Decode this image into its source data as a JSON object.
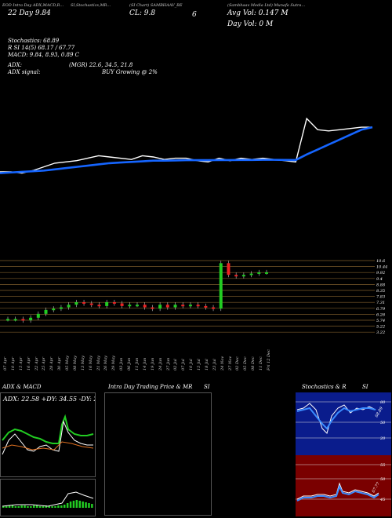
{
  "header": {
    "meta_left": "EOD Intra Day ADX,MACD,R...",
    "meta_mid1": "SI,Stochastics,MR...",
    "meta_mid2": "(SI Chart) SAMBHAAV_BE",
    "meta_right": "(Sambhaav Media Ltd) Munafa Sutra...",
    "day_change": "22 Day 9.84",
    "close": "CL: 9.8",
    "vol_label": "6",
    "avg_vol": "Avg Vol: 0.147 M",
    "day_vol": "Day Vol: 0 M"
  },
  "indicators": {
    "stochastics": "Stochastics: 68.89",
    "rsi": "R SI 14(5) 68.17 / 67.77",
    "macd": "MACD: 9.84, 8.93, 0.89 C",
    "adx": "ADX:",
    "adx_vals": "(MGR) 22.6, 34.5, 21.8",
    "adx_signal": "ADX signal:",
    "adx_buy": "BUY Growing @ 2%"
  },
  "price_levels": [
    "10.6",
    "10.44",
    "9.92",
    "9.4",
    "8.88",
    "8.35",
    "7.83",
    "7.31",
    "6.79",
    "6.26",
    "5.74",
    "5.22",
    "3.22"
  ],
  "dates": [
    "07 Apr",
    "10 Apr",
    "15 Apr",
    "16 Apr",
    "22 Apr",
    "25 Apr",
    "28 Apr",
    "30 Apr",
    "05 May",
    "08 May",
    "13 May",
    "16 May",
    "21 May",
    "26 May",
    "29 May",
    "03 Jun",
    "06 Jun",
    "11 Jun",
    "14 Jun",
    "19 Jun",
    "24 Jun",
    "27 Jun",
    "02 Jul",
    "07 Jul",
    "10 Jul",
    "15 Jul",
    "18 Jul",
    "23 Jul",
    "24 Nov",
    "27 Nov",
    "02 Dec",
    "05 Dec",
    "08 Dec",
    "11 Dec",
    "Fri 12 Dec"
  ],
  "panels": {
    "adx_title": "ADX & MACD",
    "adx_stats": "ADX: 22.58  +DY: 34.55 -DY: 21.82",
    "intraday_title": "Intra Day Trading Price & MR",
    "intraday_si": "SI",
    "stoch_title": "Stochastics & R",
    "stoch_si": "SI",
    "stoch_labels": [
      "80",
      "50",
      "20"
    ],
    "rsi_labels": [
      "55",
      "50",
      "45"
    ],
    "stoch_val": "68.89",
    "rsi_val": "67.77"
  },
  "colors": {
    "bg": "#000000",
    "price": "#ffffff",
    "ema": "#1565ff",
    "up": "#22cc22",
    "down": "#ee2222",
    "grid": "#7a5a2a"
  },
  "chart_data": {
    "type": "line",
    "title": "SAMBHAAV_BE",
    "series": [
      {
        "name": "price",
        "values": [
          6.2,
          6.2,
          6.1,
          6.3,
          6.6,
          6.9,
          7.0,
          7.1,
          7.3,
          7.5,
          7.4,
          7.3,
          7.2,
          7.5,
          7.4,
          7.2,
          7.3,
          7.3,
          7.1,
          7.0,
          7.3,
          7.1,
          7.3,
          7.2,
          7.3,
          7.2,
          7.1,
          7.0,
          10.5,
          9.6,
          9.5,
          9.6,
          9.7,
          9.8,
          9.8
        ]
      },
      {
        "name": "ema",
        "values": [
          6.1,
          6.15,
          6.2,
          6.25,
          6.3,
          6.4,
          6.5,
          6.6,
          6.7,
          6.8,
          6.9,
          6.95,
          7.0,
          7.05,
          7.1,
          7.1,
          7.12,
          7.14,
          7.14,
          7.14,
          7.15,
          7.15,
          7.16,
          7.16,
          7.17,
          7.17,
          7.16,
          7.15,
          7.6,
          8.0,
          8.4,
          8.8,
          9.2,
          9.6,
          9.8
        ]
      }
    ]
  }
}
